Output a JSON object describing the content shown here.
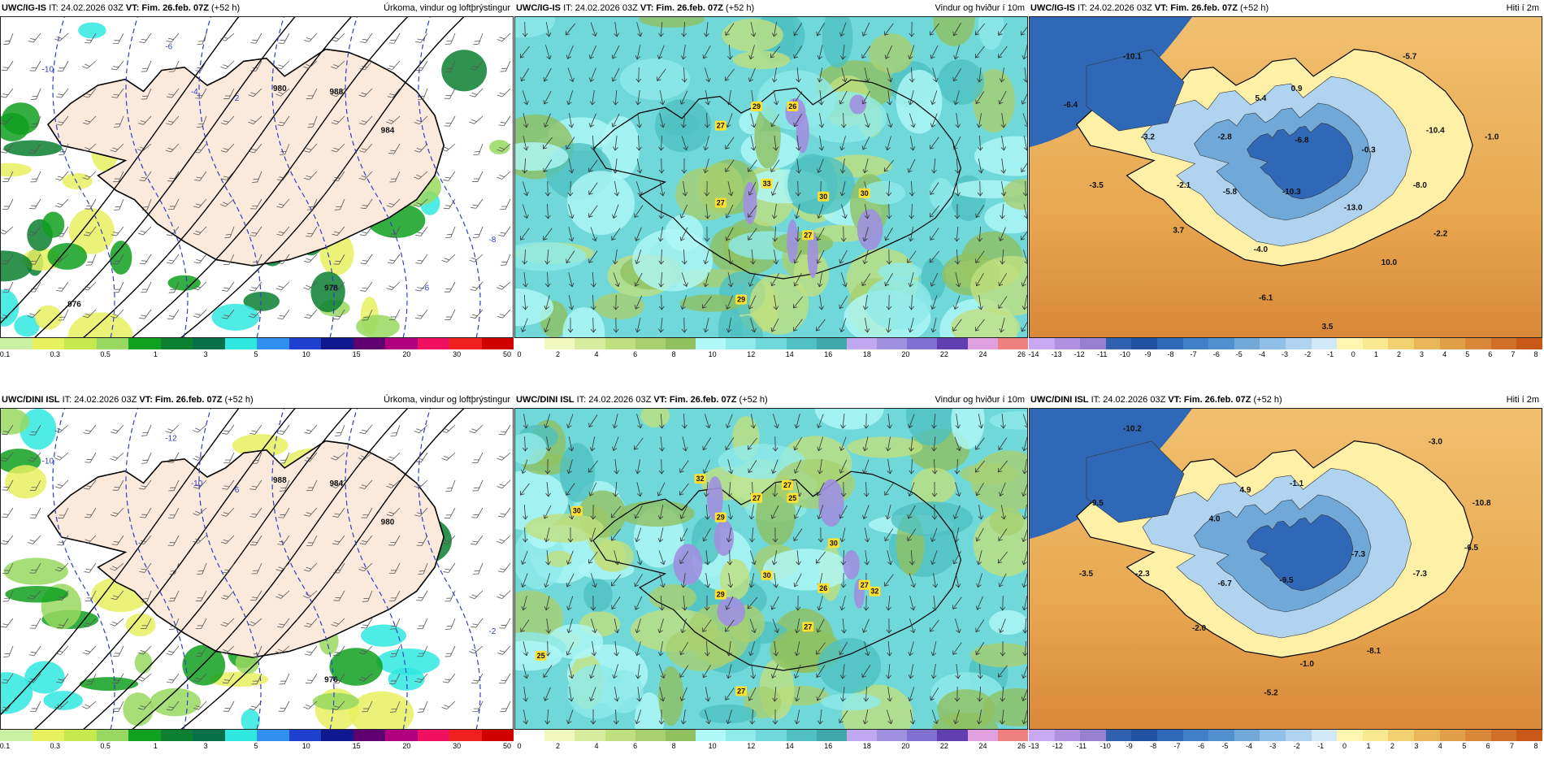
{
  "rows": [
    {
      "model": "UWC/IG-IS",
      "panels": [
        {
          "kind": "precip",
          "it": "IT: 24.02.2026 03Z",
          "vt_label": "VT:",
          "vt_value": "Fim. 26.feb. 07Z",
          "lead": "(+52 h)",
          "title": "Úrkoma, vindur og loftþrýstingur",
          "scale_colors": [
            "#c8f0a0",
            "#e8f060",
            "#c8e850",
            "#98d860",
            "#10a020",
            "#0a8030",
            "#087048",
            "#30e8e0",
            "#3090f0",
            "#2040d0",
            "#101890",
            "#600070",
            "#b00080",
            "#f01060",
            "#f02020",
            "#d00000"
          ],
          "scale_ticks": [
            "0.1",
            "0.3",
            "0.5",
            "1",
            "3",
            "5",
            "10",
            "15",
            "20",
            "30",
            "50"
          ],
          "isobars": [
            "988",
            "980",
            "984",
            "978",
            "976"
          ],
          "temps": [
            "-10",
            "-6",
            "-4",
            "-2",
            "-8",
            "-6"
          ],
          "values": []
        },
        {
          "kind": "wind",
          "it": "IT: 24.02.2026 03Z",
          "vt_label": "VT:",
          "vt_value": "Fim. 26.feb. 07Z",
          "lead": "(+52 h)",
          "title": "Vindur og hviður í 10m",
          "scale_colors": [
            "#ffffff",
            "#f0f8c0",
            "#d8eca0",
            "#c0e080",
            "#a8d070",
            "#90c060",
            "#b0f8f8",
            "#90eaea",
            "#70d8d8",
            "#50c0c0",
            "#40a8a8",
            "#c0a8f0",
            "#a090e0",
            "#8070d0",
            "#6040b0",
            "#e0a0e0",
            "#f08080"
          ],
          "scale_ticks": [
            "0",
            "2",
            "4",
            "6",
            "8",
            "10",
            "12",
            "14",
            "16",
            "18",
            "20",
            "22",
            "24",
            "26"
          ],
          "gusts": [
            "29",
            "26",
            "27",
            "33",
            "30",
            "30",
            "27",
            "27",
            "29"
          ],
          "values": []
        },
        {
          "kind": "temp",
          "it": "IT: 24.02.2026 03Z",
          "vt_label": "VT:",
          "vt_value": "Fim. 26.feb. 07Z",
          "lead": "(+52 h)",
          "title": "Hiti í 2m",
          "scale_colors": [
            "#c8a8f0",
            "#b090e0",
            "#9880d0",
            "#3060b0",
            "#2050a0",
            "#3068b8",
            "#4080c8",
            "#5090d0",
            "#70a8d8",
            "#90c0e8",
            "#b0d4f0",
            "#d0e8f8",
            "#fff4b0",
            "#f8e890",
            "#f0d070",
            "#e8b858",
            "#e0a048",
            "#d88838",
            "#d07028",
            "#c85818"
          ],
          "scale_ticks": [
            "-14",
            "-13",
            "-12",
            "-11",
            "-10",
            "-9",
            "-8",
            "-7",
            "-6",
            "-5",
            "-4",
            "-3",
            "-2",
            "-1",
            "0",
            "1",
            "2",
            "3",
            "4",
            "5",
            "6",
            "7",
            "8"
          ],
          "values": [
            "-10.1",
            "-5.7",
            "-6.4",
            "5.4",
            "0.9",
            "-10.4",
            "-1.0",
            "-6.8",
            "-0.3",
            "-3.2",
            "-2.8",
            "-3.5",
            "-2.1",
            "-5.8",
            "-10.3",
            "-8.0",
            "-13.0",
            "-2.2",
            "3.7",
            "-4.0",
            "10.0",
            "-6.1",
            "3.5"
          ]
        }
      ]
    },
    {
      "model": "UWC/DINI ISL",
      "panels": [
        {
          "kind": "precip",
          "it": "IT: 24.02.2026 03Z",
          "vt_label": "VT:",
          "vt_value": "Fim. 26.feb. 07Z",
          "lead": "(+52 h)",
          "title": "Úrkoma, vindur og loftþrýstingur",
          "scale_colors": [
            "#c8f0a0",
            "#e8f060",
            "#c8e850",
            "#98d860",
            "#10a020",
            "#0a8030",
            "#087048",
            "#30e8e0",
            "#3090f0",
            "#2040d0",
            "#101890",
            "#600070",
            "#b00080",
            "#f01060",
            "#f02020",
            "#d00000"
          ],
          "scale_ticks": [
            "0.1",
            "0.3",
            "0.5",
            "1",
            "3",
            "5",
            "10",
            "15",
            "20",
            "30",
            "50"
          ],
          "isobars": [
            "984",
            "988",
            "980",
            "976"
          ],
          "temps": [
            "-10",
            "-12",
            "-10",
            "-6",
            "-2"
          ],
          "values": []
        },
        {
          "kind": "wind",
          "it": "IT: 24.02.2026 03Z",
          "vt_label": "VT:",
          "vt_value": "Fim. 26.feb. 07Z",
          "lead": "(+52 h)",
          "title": "Vindur og hviður í 10m",
          "scale_colors": [
            "#ffffff",
            "#f0f8c0",
            "#d8eca0",
            "#c0e080",
            "#a8d070",
            "#90c060",
            "#b0f8f8",
            "#90eaea",
            "#70d8d8",
            "#50c0c0",
            "#40a8a8",
            "#c0a8f0",
            "#a090e0",
            "#8070d0",
            "#6040b0",
            "#e0a0e0",
            "#f08080"
          ],
          "scale_ticks": [
            "0",
            "2",
            "4",
            "6",
            "8",
            "10",
            "12",
            "14",
            "16",
            "18",
            "20",
            "22",
            "24",
            "26"
          ],
          "gusts": [
            "27",
            "25",
            "29",
            "30",
            "26",
            "27",
            "27",
            "29",
            "27",
            "30",
            "32",
            "27",
            "30",
            "32",
            "25"
          ],
          "values": []
        },
        {
          "kind": "temp",
          "it": "IT: 24.02.2026 03Z",
          "vt_label": "VT:",
          "vt_value": "Fim. 26.feb. 07Z",
          "lead": "(+52 h)",
          "title": "Hiti í 2m",
          "scale_colors": [
            "#c8a8f0",
            "#b090e0",
            "#9880d0",
            "#3060b0",
            "#2050a0",
            "#3068b8",
            "#4080c8",
            "#5090d0",
            "#70a8d8",
            "#90c0e8",
            "#b0d4f0",
            "#d0e8f8",
            "#fff4b0",
            "#f8e890",
            "#f0d070",
            "#e8b858",
            "#e0a048",
            "#d88838",
            "#d07028",
            "#c85818"
          ],
          "scale_ticks": [
            "-13",
            "-12",
            "-11",
            "-10",
            "-9",
            "-8",
            "-7",
            "-6",
            "-5",
            "-4",
            "-3",
            "-2",
            "-1",
            "0",
            "1",
            "2",
            "3",
            "4",
            "5",
            "6",
            "7",
            "8"
          ],
          "values": [
            "-10.2",
            "-3.0",
            "-9.5",
            "4.9",
            "-1.1",
            "-10.8",
            "4.0",
            "-6.5",
            "-7.3",
            "-3.5",
            "-2.3",
            "-6.7",
            "-9.5",
            "-7.3",
            "-2.0",
            "-8.1",
            "-1.0",
            "-5.2"
          ]
        }
      ]
    }
  ]
}
